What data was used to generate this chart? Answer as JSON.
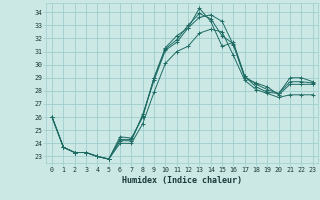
{
  "xlabel": "Humidex (Indice chaleur)",
  "bg_color": "#cce8e5",
  "grid_color": "#9ecece",
  "line_color": "#1e6b64",
  "x_ticks": [
    0,
    1,
    2,
    3,
    4,
    5,
    6,
    7,
    8,
    9,
    10,
    11,
    12,
    13,
    14,
    15,
    16,
    17,
    18,
    19,
    20,
    21,
    22,
    23
  ],
  "y_ticks": [
    23,
    24,
    25,
    26,
    27,
    28,
    29,
    30,
    31,
    32,
    33,
    34
  ],
  "ylim": [
    22.5,
    34.7
  ],
  "xlim": [
    -0.5,
    23.5
  ],
  "series": [
    [
      26.0,
      23.7,
      23.3,
      23.3,
      23.0,
      22.8,
      24.5,
      24.4,
      26.0,
      29.0,
      31.3,
      32.2,
      32.8,
      34.3,
      33.3,
      31.4,
      31.7,
      29.1,
      28.3,
      27.9,
      27.8,
      29.0,
      29.0,
      28.7
    ],
    [
      26.0,
      23.7,
      23.3,
      23.3,
      23.0,
      22.8,
      24.2,
      24.2,
      26.2,
      28.8,
      31.1,
      31.7,
      32.8,
      33.6,
      33.8,
      33.3,
      31.5,
      29.0,
      28.6,
      28.3,
      27.7,
      28.5,
      28.5,
      28.5
    ],
    [
      26.0,
      23.7,
      23.3,
      23.3,
      23.0,
      22.8,
      24.3,
      24.3,
      26.1,
      29.0,
      31.2,
      31.9,
      33.0,
      33.9,
      33.5,
      32.2,
      31.6,
      29.1,
      28.5,
      28.1,
      27.8,
      28.7,
      28.7,
      28.6
    ],
    [
      26.0,
      23.7,
      23.3,
      23.3,
      23.0,
      22.8,
      24.0,
      24.0,
      25.5,
      27.9,
      30.1,
      31.0,
      31.4,
      32.4,
      32.7,
      32.5,
      30.7,
      28.8,
      28.1,
      27.8,
      27.5,
      27.7,
      27.7,
      27.7
    ]
  ]
}
